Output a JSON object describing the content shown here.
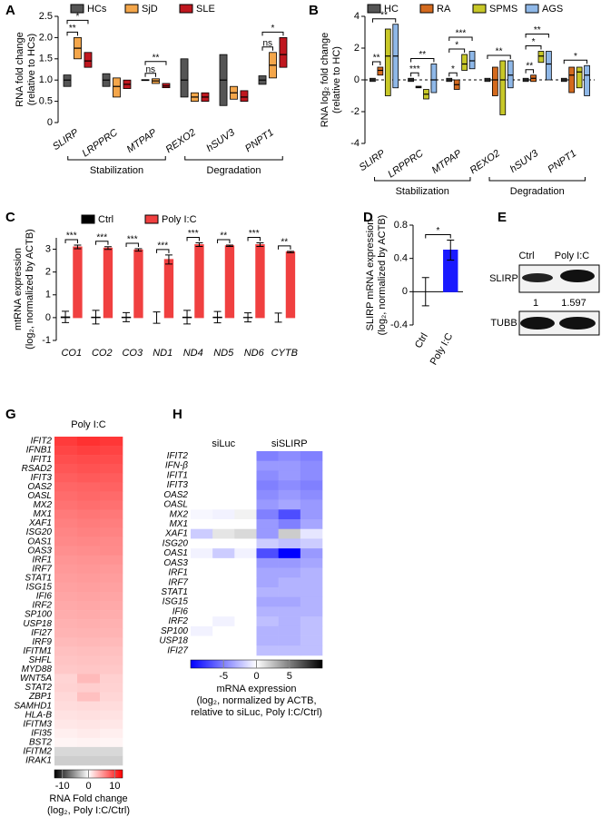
{
  "panel_labels": [
    "A",
    "B",
    "C",
    "D",
    "E",
    "G",
    "H"
  ],
  "blot": {
    "lanes": [
      "Ctrl",
      "Poly I:C"
    ],
    "proteins": [
      "SLIRP",
      "TUBB"
    ],
    "quantification": [
      1,
      1.597
    ]
  },
  "chart_data": [
    {
      "type": "box",
      "ylabel": [
        "RNA fold change",
        "(relative to HCs)"
      ],
      "categories": [
        "SLIRP",
        "LRPPRC",
        "MTPAP",
        "REXO2",
        "hSUV3",
        "PNPT1"
      ],
      "category_groups": [
        "Stabilization",
        "Degradation"
      ],
      "series": [
        {
          "name": "HCs",
          "color": "#555555",
          "low": [
            0.85,
            0.85,
            0.99,
            0.6,
            0.4,
            0.9
          ],
          "median": [
            1.0,
            1.0,
            1.0,
            1.0,
            1.0,
            1.0
          ],
          "high": [
            1.12,
            1.15,
            1.01,
            1.5,
            1.6,
            1.1
          ]
        },
        {
          "name": "SjD",
          "color": "#f4a64a",
          "low": [
            1.5,
            0.6,
            0.92,
            0.5,
            0.55,
            1.05
          ],
          "median": [
            1.75,
            0.85,
            0.98,
            0.6,
            0.7,
            1.35
          ],
          "high": [
            2.0,
            1.05,
            1.03,
            0.7,
            0.85,
            1.65
          ]
        },
        {
          "name": "SLE",
          "color": "#c0171f",
          "low": [
            1.3,
            0.8,
            0.82,
            0.5,
            0.5,
            1.3
          ],
          "median": [
            1.45,
            0.9,
            0.86,
            0.6,
            0.6,
            1.6
          ],
          "high": [
            1.65,
            1.0,
            0.92,
            0.7,
            0.75,
            2.0
          ]
        }
      ],
      "significance": [
        "**",
        "*",
        "ns",
        "**",
        "ns",
        "*"
      ],
      "ylim": [
        0,
        2.5
      ],
      "yticks": [
        0,
        0.5,
        {
          "value": 1,
          "label": "1.0"
        },
        1.5,
        {
          "value": 2,
          "label": "2.0"
        },
        2.5
      ],
      "legend": "top"
    },
    {
      "type": "box",
      "ylabel": [
        "RNA log₂ fold change",
        "(relative to HC)"
      ],
      "categories": [
        "SLIRP",
        "LRPPRC",
        "MTPAP",
        "REXO2",
        "hSUV3",
        "PNPT1"
      ],
      "category_groups": [
        "Stabilization",
        "Degradation"
      ],
      "series": [
        {
          "name": "HC",
          "color": "#555555",
          "low": [
            -0.1,
            -0.1,
            -0.1,
            -0.1,
            -0.1,
            -0.1
          ],
          "median": [
            0,
            0,
            0,
            0,
            0,
            0
          ],
          "high": [
            0.1,
            0.1,
            0.1,
            0.1,
            0.1,
            0.1
          ]
        },
        {
          "name": "RA",
          "color": "#d46a1e",
          "low": [
            0.3,
            -0.5,
            -0.6,
            -1,
            -0.1,
            -0.8
          ],
          "median": [
            0.6,
            -0.45,
            -0.3,
            0,
            0.1,
            0.3
          ],
          "high": [
            0.8,
            -0.4,
            0,
            0.8,
            0.3,
            0.8
          ]
        },
        {
          "name": "SPMS",
          "color": "#c8c828",
          "low": [
            -1,
            -1.2,
            0.6,
            -2.2,
            1.1,
            -0.5
          ],
          "median": [
            1.5,
            -0.9,
            1,
            0,
            1.5,
            0.5
          ],
          "high": [
            3.2,
            -0.6,
            1.6,
            1.2,
            1.8,
            0.8
          ]
        },
        {
          "name": "AGS",
          "color": "#8fb8e8",
          "low": [
            -0.5,
            -0.8,
            0.7,
            -0.5,
            0,
            -1
          ],
          "median": [
            1.5,
            0,
            1.2,
            0.3,
            1,
            0.3
          ],
          "high": [
            3.5,
            1,
            1.8,
            1.2,
            1.8,
            0.9
          ]
        }
      ],
      "significance": [
        "**",
        "**",
        "***",
        "**",
        "*",
        "*",
        "***",
        "**",
        "**",
        "*",
        "**",
        "*"
      ],
      "ylim": [
        -4,
        4
      ],
      "yticks": [
        -4,
        -2,
        0,
        2,
        4
      ],
      "zero_line": "dashed",
      "legend": "top"
    },
    {
      "type": "bar",
      "ylabel": [
        "mtRNA expression",
        "(log₂, normalized by ACTB)"
      ],
      "categories": [
        "CO1",
        "CO2",
        "CO3",
        "ND1",
        "ND4",
        "ND5",
        "ND6",
        "CYTB"
      ],
      "series": [
        {
          "name": "Ctrl",
          "color": "#000000",
          "values": [
            0.03,
            0.02,
            0.02,
            0,
            0.02,
            0.02,
            0.01,
            0
          ],
          "errors": [
            0.25,
            0.3,
            0.2,
            0.25,
            0.3,
            0.25,
            0.2,
            0.2
          ]
        },
        {
          "name": "Poly I:C",
          "color": "#f04040",
          "values": [
            3.1,
            3.05,
            2.97,
            2.55,
            3.2,
            3.15,
            3.2,
            2.88
          ],
          "errors": [
            0.08,
            0.06,
            0.05,
            0.2,
            0.08,
            0.03,
            0.08,
            0.03
          ]
        }
      ],
      "significance": [
        "***",
        "***",
        "***",
        "***",
        "***",
        "**",
        "***",
        "**"
      ],
      "ylim": [
        -1,
        3.5
      ],
      "yticks": [
        -1,
        0,
        1,
        2,
        3
      ],
      "legend": "top"
    },
    {
      "type": "bar",
      "ylabel": [
        "SLIRP mRNA expression",
        "(log₂, normalized by ACTB)"
      ],
      "categories": [
        "Ctrl",
        "Poly I:C"
      ],
      "series": [
        {
          "color": "#1a1aff",
          "values": [
            0,
            0.5
          ],
          "errors": [
            0.17,
            0.12
          ]
        }
      ],
      "significance": [
        "*"
      ],
      "ylim": [
        -0.4,
        0.8
      ],
      "yticks": [
        -0.4,
        0,
        0.4,
        0.8
      ],
      "zero_line": "solid"
    },
    {
      "type": "heatmap",
      "column_groups": [
        "Poly I:C"
      ],
      "rows": [
        "IFIT2",
        "IFNB1",
        "IFIT1",
        "RSAD2",
        "IFIT3",
        "OAS2",
        "OASL",
        "MX2",
        "MX1",
        "XAF1",
        "ISG20",
        "OAS1",
        "OAS3",
        "IRF1",
        "IRF7",
        "STAT1",
        "ISG15",
        "IFI6",
        "IRF2",
        "SP100",
        "USP18",
        "IFI27",
        "IRF9",
        "IFITM1",
        "SHFL",
        "MYD88",
        "WNT5A",
        "STAT2",
        "ZBP1",
        "SAMHD1",
        "HLA-B",
        "IFITM3",
        "IFI35",
        "BST2",
        "IFITM2",
        "IRAK1"
      ],
      "values": [
        [
          10,
          10.5,
          10.2
        ],
        [
          9.5,
          9.8,
          9.6
        ],
        [
          9,
          9.2,
          9.1
        ],
        [
          8.6,
          8.8,
          8.7
        ],
        [
          8.2,
          8.4,
          8.3
        ],
        [
          7.8,
          7.9,
          8
        ],
        [
          7.5,
          7.7,
          7.6
        ],
        [
          7.2,
          7.4,
          7.3
        ],
        [
          6.8,
          7,
          6.9
        ],
        [
          6.5,
          6.7,
          6.6
        ],
        [
          6.2,
          6.4,
          6.3
        ],
        [
          6,
          6.1,
          6
        ],
        [
          5.7,
          5.8,
          5.9
        ],
        [
          5.4,
          5.5,
          5.5
        ],
        [
          5.2,
          5.3,
          5.2
        ],
        [
          5,
          5.1,
          5
        ],
        [
          4.8,
          4.9,
          4.8
        ],
        [
          4.6,
          4.7,
          4.6
        ],
        [
          4.4,
          4.5,
          4.4
        ],
        [
          4.2,
          4.3,
          4.2
        ],
        [
          4,
          4.1,
          4
        ],
        [
          3.8,
          3.9,
          3.8
        ],
        [
          3.5,
          3.6,
          3.5
        ],
        [
          3.2,
          3.3,
          3.2
        ],
        [
          3,
          3.1,
          3
        ],
        [
          2.8,
          2.9,
          2.8
        ],
        [
          2.2,
          3.5,
          2.4
        ],
        [
          2.3,
          2.5,
          2.3
        ],
        [
          2,
          3.2,
          2.1
        ],
        [
          1.8,
          1.9,
          1.8
        ],
        [
          1.5,
          1.6,
          1.5
        ],
        [
          1.2,
          1.3,
          1.2
        ],
        [
          0.8,
          1,
          0.8
        ],
        [
          0.5,
          0.6,
          0.5
        ],
        [
          -2,
          -2,
          -2
        ],
        [
          -2.5,
          -2.5,
          -2.5
        ]
      ],
      "clim": [
        -13,
        13
      ],
      "cticks": [
        -10,
        0,
        10
      ],
      "colors": [
        "#000000",
        "#ffffff",
        "#ff0000"
      ],
      "clabel": [
        "RNA Fold change",
        "(log₂, Poly I:C/Ctrl)"
      ]
    },
    {
      "type": "heatmap",
      "column_groups": [
        "siLuc",
        "siSLIRP"
      ],
      "rows": [
        "IFIT2",
        "IFN-β",
        "IFIT1",
        "IFIT3",
        "OAS2",
        "OASL",
        "MX2",
        "MX1",
        "XAF1",
        "ISG20",
        "OAS1",
        "OAS3",
        "IRF1",
        "IRF7",
        "STAT1",
        "ISG15",
        "IFI6",
        "IRF2",
        "SP100",
        "USP18",
        "IFI27"
      ],
      "values": [
        [
          0,
          0,
          0,
          -5,
          -4.5,
          -5
        ],
        [
          0,
          0,
          0,
          -4,
          -4,
          -4.5
        ],
        [
          0,
          0,
          0,
          -4.5,
          -4,
          -4.5
        ],
        [
          0,
          0,
          0,
          -5,
          -4.5,
          -5
        ],
        [
          0,
          0,
          0,
          -4.5,
          -4,
          -4.5
        ],
        [
          0,
          0,
          0,
          -4,
          -3.5,
          -4
        ],
        [
          -0.3,
          -0.5,
          0.5,
          -5,
          -7,
          -4
        ],
        [
          0,
          0,
          0,
          -4,
          -5,
          -3.5
        ],
        [
          -2,
          1,
          1.5,
          -4,
          2,
          -1
        ],
        [
          0,
          0,
          0,
          -2,
          -2.5,
          -2
        ],
        [
          -0.5,
          -2,
          -0.5,
          -7,
          -10,
          -4
        ],
        [
          0,
          0,
          0,
          -4,
          -4,
          -3.5
        ],
        [
          0,
          0,
          0,
          -3.5,
          -3.5,
          -3
        ],
        [
          0,
          0,
          0,
          -3.5,
          -3,
          -3
        ],
        [
          0,
          0,
          0,
          -3,
          -3,
          -3
        ],
        [
          0,
          0,
          0,
          -3.5,
          -3.5,
          -3
        ],
        [
          0,
          0,
          0,
          -3,
          -3,
          -3
        ],
        [
          0,
          -0.5,
          0,
          -2.5,
          -3,
          -2.5
        ],
        [
          -0.5,
          0,
          0,
          -3,
          -3,
          -2.5
        ],
        [
          0,
          0,
          0,
          -3,
          -3,
          -2.5
        ],
        [
          0,
          0,
          0,
          -2.5,
          -2.5,
          -2.5
        ]
      ],
      "clim": [
        -10,
        10
      ],
      "cticks": [
        -5,
        0,
        5
      ],
      "colors": [
        "#0000ff",
        "#ffffff",
        "#000000"
      ],
      "clabel": [
        "mRNA expression",
        "(log₂, normalized by ACTB,",
        "relative to siLuc, Poly I:C/Ctrl)"
      ]
    }
  ]
}
